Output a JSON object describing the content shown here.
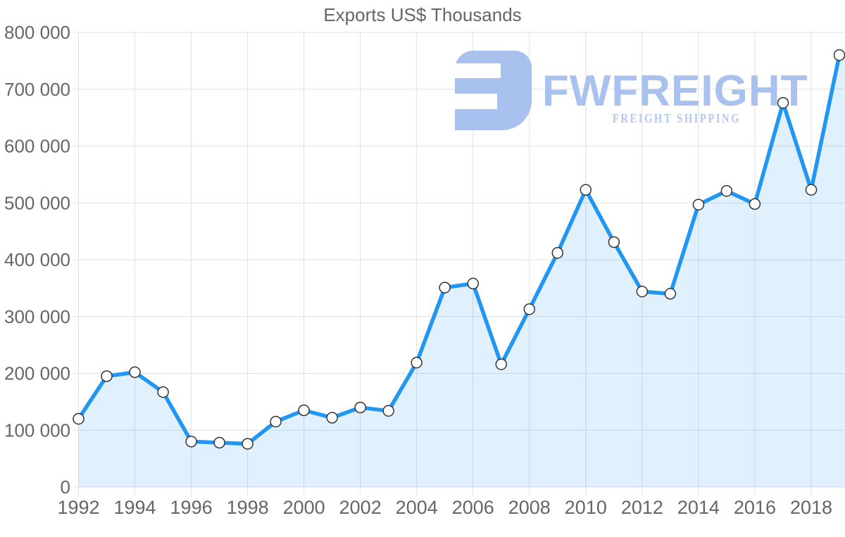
{
  "chart_data": {
    "type": "area",
    "title": "Exports US$ Thousands",
    "xlabel": "",
    "ylabel": "",
    "x": [
      1992,
      1993,
      1994,
      1995,
      1996,
      1997,
      1998,
      1999,
      2000,
      2001,
      2002,
      2003,
      2004,
      2005,
      2006,
      2007,
      2008,
      2009,
      2010,
      2011,
      2012,
      2013,
      2014,
      2015,
      2016,
      2017,
      2018,
      2019
    ],
    "values": [
      120000,
      195000,
      202000,
      167000,
      80000,
      78000,
      76000,
      115000,
      135000,
      122000,
      140000,
      134000,
      219000,
      351000,
      358000,
      216000,
      313000,
      412000,
      523000,
      431000,
      344000,
      340000,
      497000,
      521000,
      498000,
      676000,
      523000,
      760000
    ],
    "ylim": [
      0,
      800000
    ],
    "xlim": [
      1992,
      2019
    ],
    "ytick_values": [
      0,
      100000,
      200000,
      300000,
      400000,
      500000,
      600000,
      700000,
      800000
    ],
    "ytick_labels": [
      "0",
      "100 000",
      "200 000",
      "300 000",
      "400 000",
      "500 000",
      "600 000",
      "700 000",
      "800 000"
    ],
    "xtick_values": [
      1992,
      1994,
      1996,
      1998,
      2000,
      2002,
      2004,
      2006,
      2008,
      2010,
      2012,
      2014,
      2016,
      2018
    ],
    "xtick_labels": [
      "1992",
      "1994",
      "1996",
      "1998",
      "2000",
      "2002",
      "2004",
      "2006",
      "2008",
      "2010",
      "2012",
      "2014",
      "2016",
      "2018"
    ],
    "grid": true,
    "legend": false,
    "marker": "circle"
  },
  "watermark": {
    "brand": "FWFREIGHT",
    "tagline": "FREIGHT SHIPPING"
  },
  "colors": {
    "line": "#2196f3",
    "area_fill": "rgba(33,150,243,0.14)",
    "grid": "#e0e0e0",
    "axis_text": "#666666",
    "title_text": "#666666",
    "marker_fill": "#ffffff",
    "marker_stroke": "#333333",
    "watermark_primary": "#a8c1ee",
    "watermark_tagline": "#b3c8f2"
  }
}
